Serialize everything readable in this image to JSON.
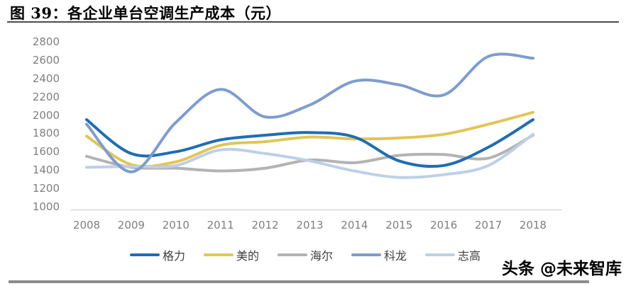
{
  "header": {
    "title": "图 39：各企业单台空调生产成本（元）"
  },
  "footer": {
    "watermark": "头条 @未来智库"
  },
  "colors": {
    "axis_text": "#7f7f7f",
    "baseline": "#d9d9d9",
    "title_rule": "#4d4d4d",
    "bottom_bar": "#8c8c8c"
  },
  "chart_data": {
    "type": "line",
    "title": "图 39：各企业单台空调生产成本（元）",
    "xlabel": "",
    "ylabel": "",
    "x": [
      2008,
      2009,
      2010,
      2011,
      2012,
      2013,
      2014,
      2015,
      2016,
      2017,
      2018
    ],
    "series": [
      {
        "id": "gree",
        "name": "格力",
        "color": "#1f6db4",
        "values": [
          1950,
          1580,
          1600,
          1730,
          1780,
          1810,
          1760,
          1500,
          1450,
          1650,
          1950
        ]
      },
      {
        "id": "midea",
        "name": "美的",
        "color": "#e2c556",
        "values": [
          1770,
          1460,
          1490,
          1670,
          1710,
          1760,
          1740,
          1750,
          1790,
          1900,
          2030
        ]
      },
      {
        "id": "haier",
        "name": "海尔",
        "color": "#b3b3b3",
        "values": [
          1550,
          1430,
          1420,
          1390,
          1420,
          1510,
          1480,
          1560,
          1570,
          1530,
          1780
        ]
      },
      {
        "id": "kelon",
        "name": "科龙",
        "color": "#7e9cd0",
        "values": [
          1900,
          1380,
          1920,
          2280,
          1980,
          2110,
          2370,
          2330,
          2220,
          2640,
          2620
        ]
      },
      {
        "id": "chigo",
        "name": "志高",
        "color": "#bdcfe8",
        "values": [
          1430,
          1440,
          1450,
          1620,
          1580,
          1500,
          1390,
          1320,
          1350,
          1450,
          1790
        ]
      }
    ],
    "y_ticks": [
      2800,
      2600,
      2400,
      2200,
      2000,
      1800,
      1600,
      1400,
      1200,
      1000
    ],
    "ylim": [
      1000,
      2800
    ],
    "grid": false,
    "legend_position": "bottom"
  }
}
